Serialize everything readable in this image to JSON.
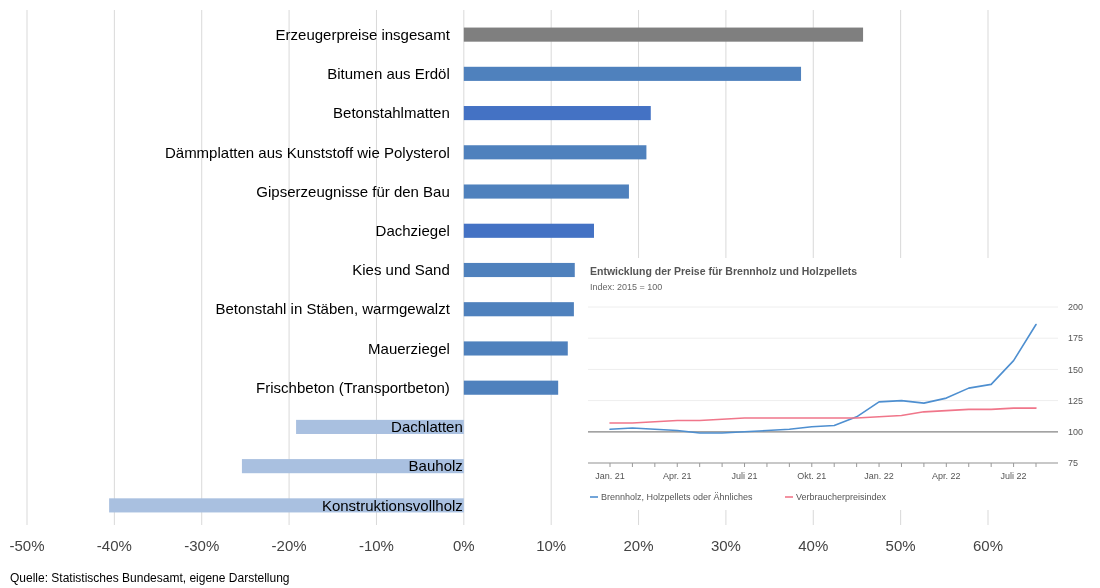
{
  "chart_data": [
    {
      "type": "bar",
      "orientation": "horizontal",
      "categories": [
        "Erzeugerpreise insgesamt",
        "Bitumen aus Erdöl",
        "Betonstahlmatten",
        "Dämmplatten aus Kunststoff wie Polysterol",
        "Gipserzeugnisse für den Bau",
        "Dachziegel",
        "Kies und Sand",
        "Betonstahl in Stäben, warmgewalzt",
        "Mauerziegel",
        "Frischbeton (Transportbeton)",
        "Dachlatten",
        "Bauholz",
        "Konstruktionsvollholz"
      ],
      "values": [
        45.7,
        38.6,
        21.4,
        20.9,
        18.9,
        14.9,
        12.7,
        12.6,
        11.9,
        10.8,
        -19.2,
        -25.4,
        -40.6
      ],
      "colors": [
        "#7f7f7f",
        "#4f81bd",
        "#4472c4",
        "#4f81bd",
        "#4f81bd",
        "#4472c4",
        "#4f81bd",
        "#4f81bd",
        "#4f81bd",
        "#4f81bd",
        "#a9c0e0",
        "#a9c0e0",
        "#a9c0e0"
      ],
      "xlim": [
        -50,
        60
      ],
      "xticks": [
        {
          "value": -50,
          "label": "-50%"
        },
        {
          "value": -40,
          "label": "-40%"
        },
        {
          "value": -30,
          "label": "-30%"
        },
        {
          "value": -20,
          "label": "-20%"
        },
        {
          "value": -10,
          "label": "-10%"
        },
        {
          "value": 0,
          "label": "0%"
        },
        {
          "value": 10,
          "label": "10%"
        },
        {
          "value": 20,
          "label": "20%"
        },
        {
          "value": 30,
          "label": "30%"
        },
        {
          "value": 40,
          "label": "40%"
        },
        {
          "value": 50,
          "label": "50%"
        },
        {
          "value": 60,
          "label": "60%"
        }
      ],
      "grid": "x",
      "annotations": [
        "Quelle: Statistisches Bundesamt, eigene Darstellung"
      ]
    },
    {
      "type": "line",
      "title": "Entwicklung der Preise für Brennholz und Holzpellets",
      "subtitle": "Index: 2015 = 100",
      "categories": [
        "Jan. 21",
        null,
        null,
        "Apr. 21",
        null,
        null,
        "Juli 21",
        null,
        null,
        "Okt. 21",
        null,
        null,
        "Jan. 22",
        null,
        null,
        "Apr. 22",
        null,
        null,
        "Juli 22",
        null
      ],
      "series": [
        {
          "name": "Brennholz, Holzpellets oder Ähnliches",
          "color": "#4e8fd0",
          "values": [
            102,
            103,
            102,
            101,
            99,
            99,
            100,
            101,
            102,
            104,
            105,
            112,
            124,
            125,
            123,
            127,
            135,
            138,
            157,
            186
          ]
        },
        {
          "name": "Verbraucherpreisindex",
          "color": "#f0768a",
          "values": [
            107,
            107,
            108,
            109,
            109,
            110,
            111,
            111,
            111,
            111,
            111,
            111,
            112,
            113,
            116,
            117,
            118,
            118,
            119,
            119
          ]
        }
      ],
      "ylim": [
        75,
        200
      ],
      "yticks": [
        75,
        100,
        125,
        150,
        175,
        200
      ],
      "grid": "y",
      "legend": "bottom",
      "ref_lines": [
        {
          "axis": "y",
          "value": 100,
          "color": "#888888"
        }
      ]
    }
  ]
}
